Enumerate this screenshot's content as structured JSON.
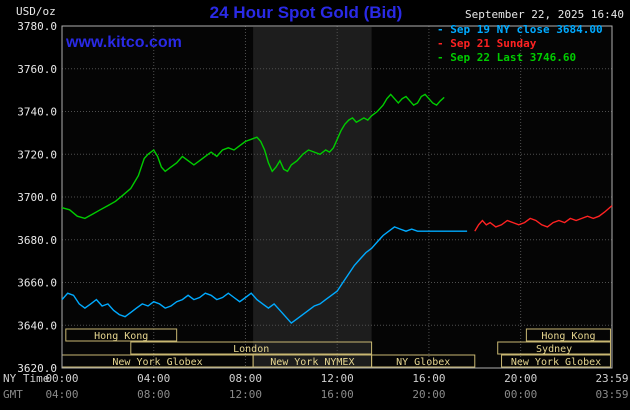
{
  "colors": {
    "background": "#000000",
    "plot_bg": "#050505",
    "band": "#1d1d1d",
    "grid": "#4f4f4f",
    "border": "#b0b0b0",
    "title_blue": "#2a2ae6",
    "white_text": "#e8e8e8",
    "ny_tick": "#d0d0d0",
    "gmt_tick": "#8a8a8a",
    "session_border": "#c9b872",
    "session_text": "#e6d690",
    "cyan": "#00aaff",
    "red": "#ff2222",
    "green": "#00cc00"
  },
  "header": {
    "units_label": "USD/oz",
    "title": "24 Hour Spot Gold (Bid)",
    "datetime": "September 22, 2025 16:40",
    "watermark": "www.kitco.com"
  },
  "legend": [
    {
      "marker": "- ",
      "label": "Sep 19 NY close 3684.00",
      "color": "#00aaff"
    },
    {
      "marker": "- ",
      "label": "Sep 21 Sunday",
      "color": "#ff2222"
    },
    {
      "marker": "- ",
      "label": "Sep 22 Last 3746.60",
      "color": "#00cc00"
    }
  ],
  "xaxis": {
    "ny_label": "NY Time",
    "gmt_label": "GMT"
  },
  "chart_data": {
    "type": "line",
    "title": "24 Hour Spot Gold (Bid)",
    "ylabel": "USD/oz",
    "ylim": [
      3620,
      3780
    ],
    "ytick_step": 20,
    "xlim_minutes": [
      0,
      1439
    ],
    "xticks": [
      {
        "min": 0,
        "ny": "00:00",
        "gmt": "04:00"
      },
      {
        "min": 240,
        "ny": "04:00",
        "gmt": "08:00"
      },
      {
        "min": 480,
        "ny": "08:00",
        "gmt": "12:00"
      },
      {
        "min": 720,
        "ny": "12:00",
        "gmt": "16:00"
      },
      {
        "min": 960,
        "ny": "16:00",
        "gmt": "20:00"
      },
      {
        "min": 1200,
        "ny": "20:00",
        "gmt": "00:00"
      },
      {
        "min": 1439,
        "ny": "23:59",
        "gmt": "03:59"
      }
    ],
    "highlight_band": {
      "start_min": 500,
      "end_min": 810
    },
    "series": [
      {
        "id": "sep19",
        "name": "Sep 19 NY close 3684.00",
        "color": "#00aaff",
        "points": [
          [
            0,
            3652
          ],
          [
            15,
            3655
          ],
          [
            30,
            3654
          ],
          [
            45,
            3650
          ],
          [
            60,
            3648
          ],
          [
            75,
            3650
          ],
          [
            90,
            3652
          ],
          [
            105,
            3649
          ],
          [
            120,
            3650
          ],
          [
            135,
            3647
          ],
          [
            150,
            3645
          ],
          [
            165,
            3644
          ],
          [
            180,
            3646
          ],
          [
            195,
            3648
          ],
          [
            210,
            3650
          ],
          [
            225,
            3649
          ],
          [
            240,
            3651
          ],
          [
            255,
            3650
          ],
          [
            270,
            3648
          ],
          [
            285,
            3649
          ],
          [
            300,
            3651
          ],
          [
            315,
            3652
          ],
          [
            330,
            3654
          ],
          [
            345,
            3652
          ],
          [
            360,
            3653
          ],
          [
            375,
            3655
          ],
          [
            390,
            3654
          ],
          [
            405,
            3652
          ],
          [
            420,
            3653
          ],
          [
            435,
            3655
          ],
          [
            450,
            3653
          ],
          [
            465,
            3651
          ],
          [
            480,
            3653
          ],
          [
            495,
            3655
          ],
          [
            510,
            3652
          ],
          [
            525,
            3650
          ],
          [
            540,
            3648
          ],
          [
            555,
            3650
          ],
          [
            570,
            3647
          ],
          [
            585,
            3644
          ],
          [
            600,
            3641
          ],
          [
            615,
            3643
          ],
          [
            630,
            3645
          ],
          [
            645,
            3647
          ],
          [
            660,
            3649
          ],
          [
            675,
            3650
          ],
          [
            690,
            3652
          ],
          [
            705,
            3654
          ],
          [
            720,
            3656
          ],
          [
            735,
            3660
          ],
          [
            750,
            3664
          ],
          [
            765,
            3668
          ],
          [
            780,
            3671
          ],
          [
            795,
            3674
          ],
          [
            810,
            3676
          ],
          [
            825,
            3679
          ],
          [
            840,
            3682
          ],
          [
            855,
            3684
          ],
          [
            870,
            3686
          ],
          [
            885,
            3685
          ],
          [
            900,
            3684
          ],
          [
            915,
            3685
          ],
          [
            930,
            3684
          ],
          [
            960,
            3684
          ],
          [
            990,
            3684
          ],
          [
            1020,
            3684
          ],
          [
            1060,
            3684
          ]
        ]
      },
      {
        "id": "sep21",
        "name": "Sep 21 Sunday",
        "color": "#ff2222",
        "points": [
          [
            1080,
            3684
          ],
          [
            1090,
            3687
          ],
          [
            1100,
            3689
          ],
          [
            1110,
            3687
          ],
          [
            1120,
            3688
          ],
          [
            1135,
            3686
          ],
          [
            1150,
            3687
          ],
          [
            1165,
            3689
          ],
          [
            1180,
            3688
          ],
          [
            1195,
            3687
          ],
          [
            1210,
            3688
          ],
          [
            1225,
            3690
          ],
          [
            1240,
            3689
          ],
          [
            1255,
            3687
          ],
          [
            1270,
            3686
          ],
          [
            1285,
            3688
          ],
          [
            1300,
            3689
          ],
          [
            1315,
            3688
          ],
          [
            1330,
            3690
          ],
          [
            1345,
            3689
          ],
          [
            1360,
            3690
          ],
          [
            1375,
            3691
          ],
          [
            1390,
            3690
          ],
          [
            1405,
            3691
          ],
          [
            1420,
            3693
          ],
          [
            1439,
            3696
          ]
        ]
      },
      {
        "id": "sep22",
        "name": "Sep 22 Last 3746.60",
        "color": "#00cc00",
        "points": [
          [
            0,
            3695
          ],
          [
            20,
            3694
          ],
          [
            40,
            3691
          ],
          [
            60,
            3690
          ],
          [
            80,
            3692
          ],
          [
            100,
            3694
          ],
          [
            120,
            3696
          ],
          [
            140,
            3698
          ],
          [
            160,
            3701
          ],
          [
            180,
            3704
          ],
          [
            200,
            3710
          ],
          [
            215,
            3718
          ],
          [
            225,
            3720
          ],
          [
            240,
            3722
          ],
          [
            250,
            3719
          ],
          [
            260,
            3714
          ],
          [
            270,
            3712
          ],
          [
            285,
            3714
          ],
          [
            300,
            3716
          ],
          [
            315,
            3719
          ],
          [
            330,
            3717
          ],
          [
            345,
            3715
          ],
          [
            360,
            3717
          ],
          [
            375,
            3719
          ],
          [
            390,
            3721
          ],
          [
            405,
            3719
          ],
          [
            420,
            3722
          ],
          [
            435,
            3723
          ],
          [
            450,
            3722
          ],
          [
            465,
            3724
          ],
          [
            480,
            3726
          ],
          [
            495,
            3727
          ],
          [
            510,
            3728
          ],
          [
            520,
            3726
          ],
          [
            530,
            3722
          ],
          [
            540,
            3716
          ],
          [
            550,
            3712
          ],
          [
            560,
            3714
          ],
          [
            570,
            3717
          ],
          [
            580,
            3713
          ],
          [
            590,
            3712
          ],
          [
            600,
            3715
          ],
          [
            615,
            3717
          ],
          [
            630,
            3720
          ],
          [
            645,
            3722
          ],
          [
            660,
            3721
          ],
          [
            675,
            3720
          ],
          [
            690,
            3722
          ],
          [
            700,
            3721
          ],
          [
            710,
            3723
          ],
          [
            720,
            3727
          ],
          [
            730,
            3731
          ],
          [
            740,
            3734
          ],
          [
            750,
            3736
          ],
          [
            760,
            3737
          ],
          [
            770,
            3735
          ],
          [
            780,
            3736
          ],
          [
            790,
            3737
          ],
          [
            800,
            3736
          ],
          [
            810,
            3738
          ],
          [
            825,
            3740
          ],
          [
            840,
            3743
          ],
          [
            850,
            3746
          ],
          [
            860,
            3748
          ],
          [
            870,
            3746
          ],
          [
            880,
            3744
          ],
          [
            890,
            3746
          ],
          [
            900,
            3747
          ],
          [
            910,
            3745
          ],
          [
            920,
            3743
          ],
          [
            930,
            3744
          ],
          [
            940,
            3747
          ],
          [
            950,
            3748
          ],
          [
            960,
            3746
          ],
          [
            970,
            3744
          ],
          [
            980,
            3743
          ],
          [
            990,
            3745
          ],
          [
            1000,
            3746.6
          ]
        ]
      }
    ],
    "sessions": [
      {
        "id": "hong-kong-early",
        "label": "Hong Kong",
        "row": 0,
        "start_min": 10,
        "end_min": 300
      },
      {
        "id": "hong-kong-late",
        "label": "Hong Kong",
        "row": 0,
        "start_min": 1215,
        "end_min": 1435
      },
      {
        "id": "london",
        "label": "London",
        "row": 1,
        "start_min": 180,
        "end_min": 810
      },
      {
        "id": "sydney",
        "label": "Sydney",
        "row": 1,
        "start_min": 1140,
        "end_min": 1435
      },
      {
        "id": "new-york-globex-am",
        "label": "New York Globex",
        "row": 2,
        "start_min": 0,
        "end_min": 500
      },
      {
        "id": "new-york-nymex",
        "label": "New York NYMEX",
        "row": 2,
        "start_min": 500,
        "end_min": 810
      },
      {
        "id": "ny-globex",
        "label": "NY Globex",
        "row": 2,
        "start_min": 810,
        "end_min": 1080
      },
      {
        "id": "new-york-globex-pm",
        "label": "New York Globex",
        "row": 2,
        "start_min": 1150,
        "end_min": 1435
      }
    ]
  }
}
